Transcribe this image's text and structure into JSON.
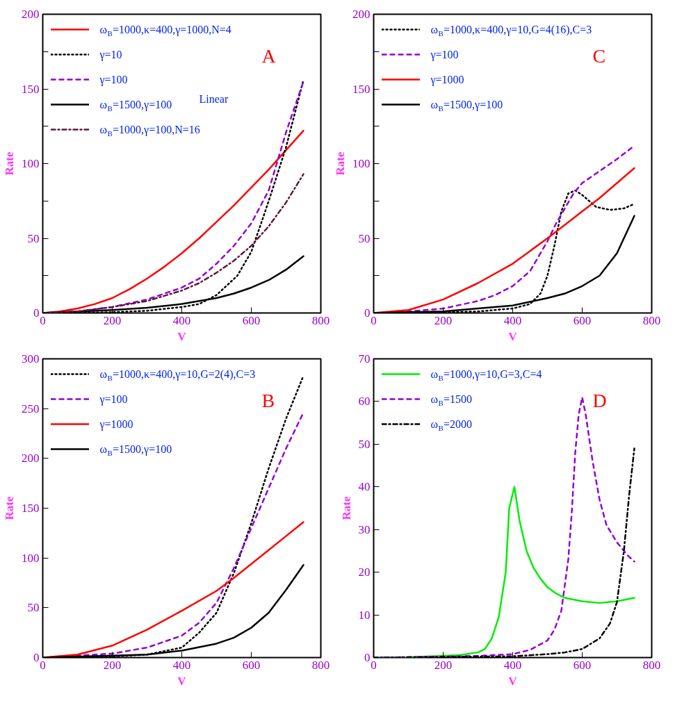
{
  "chart_data": [
    {
      "type": "line",
      "title": "A",
      "xlabel": "V",
      "ylabel": "Rate",
      "annotations": [
        "Linear"
      ],
      "xlim": [
        0,
        800
      ],
      "xticks": [
        0,
        200,
        400,
        600,
        800
      ],
      "ylim": [
        0,
        200
      ],
      "yticks": [
        0,
        {
          "value": 25,
          "label": null
        },
        50,
        {
          "value": 75,
          "label": null
        },
        100,
        {
          "value": 125,
          "label": null
        },
        150,
        {
          "value": 175,
          "label": null
        },
        200
      ],
      "grid": false,
      "legend": "top left",
      "series": [
        {
          "name": "ω$_{B}$=1000,κ=400,γ=1000,N=4",
          "color": "#ff0000",
          "line_style": "solid",
          "x": [
            0,
            50,
            100,
            150,
            200,
            250,
            300,
            350,
            400,
            450,
            500,
            550,
            600,
            650,
            700,
            750
          ],
          "values": [
            0,
            1,
            3,
            6,
            10,
            16,
            23,
            31,
            40,
            50,
            61,
            72,
            84,
            96,
            109,
            122
          ]
        },
        {
          "name": "γ=10",
          "color": "#000000",
          "line_style": "dotted",
          "x": [
            0,
            100,
            200,
            300,
            400,
            450,
            500,
            560,
            600,
            640,
            660,
            700,
            750
          ],
          "values": [
            0,
            0.2,
            0.5,
            1.5,
            4,
            6,
            12,
            25,
            41,
            68,
            82,
            111,
            156
          ]
        },
        {
          "name": "γ=100",
          "color": "#9400d3",
          "line_style": "dashed",
          "x": [
            0,
            100,
            200,
            300,
            400,
            450,
            500,
            550,
            600,
            650,
            700,
            750
          ],
          "values": [
            0,
            1,
            4,
            9,
            17,
            23,
            33,
            45,
            60,
            82,
            121,
            155
          ]
        },
        {
          "name": "ω$_{B}$=1500,γ=100",
          "color": "#000000",
          "line_style": "solid",
          "x": [
            0,
            200,
            300,
            400,
            500,
            550,
            600,
            650,
            700,
            750
          ],
          "values": [
            0,
            2,
            3.5,
            6,
            10,
            13,
            17,
            22,
            29,
            38
          ]
        },
        {
          "name": "ω$_{B}$=1000,γ=100,N=16",
          "color": "#5c1a3c",
          "line_style": "dashdot",
          "x": [
            0,
            100,
            200,
            300,
            400,
            450,
            500,
            550,
            600,
            650,
            700,
            750
          ],
          "values": [
            0,
            1,
            4,
            8,
            15,
            20,
            27,
            35,
            45,
            58,
            74,
            93
          ]
        }
      ]
    },
    {
      "type": "line",
      "title": "C",
      "xlabel": "V",
      "ylabel": "Rate",
      "xlim": [
        0,
        800
      ],
      "xticks": [
        0,
        200,
        400,
        600,
        800
      ],
      "ylim": [
        0,
        200
      ],
      "yticks": [
        0,
        {
          "value": 25,
          "label": null
        },
        50,
        {
          "value": 75,
          "label": null
        },
        100,
        {
          "value": 125,
          "label": null
        },
        150,
        {
          "value": 175,
          "label": null
        },
        200
      ],
      "grid": false,
      "legend": "top left",
      "series": [
        {
          "name": "ω$_{B}$=1000,κ=400,γ=10,G=4(16),C=3",
          "color": "#000000",
          "line_style": "dotted",
          "x": [
            0,
            200,
            300,
            400,
            450,
            480,
            500,
            520,
            540,
            560,
            580,
            600,
            620,
            640,
            680,
            720,
            750
          ],
          "values": [
            0,
            0.5,
            1,
            3,
            6,
            13,
            25,
            45,
            68,
            80,
            82,
            79,
            75,
            71,
            69,
            70,
            73
          ]
        },
        {
          "name": "γ=100",
          "color": "#9400d3",
          "line_style": "dashed",
          "x": [
            0,
            100,
            200,
            300,
            350,
            400,
            450,
            500,
            525,
            550,
            575,
            600,
            650,
            700,
            750
          ],
          "values": [
            0,
            1,
            3,
            8,
            12,
            18,
            28,
            48,
            60,
            70,
            80,
            87,
            95,
            103,
            112
          ]
        },
        {
          "name": "γ=1000",
          "color": "#ff0000",
          "line_style": "solid",
          "x": [
            0,
            100,
            200,
            300,
            400,
            500,
            550,
            600,
            650,
            700,
            750
          ],
          "values": [
            0,
            2,
            9,
            20,
            33,
            50,
            59,
            68,
            77,
            87,
            97
          ]
        },
        {
          "name": "ω$_{B}$=1500,γ=100",
          "color": "#000000",
          "line_style": "solid",
          "x": [
            0,
            200,
            300,
            400,
            500,
            550,
            600,
            650,
            700,
            750
          ],
          "values": [
            0,
            1,
            3,
            5,
            10,
            13,
            18,
            25,
            40,
            65
          ]
        }
      ]
    },
    {
      "type": "line",
      "title": "B",
      "xlabel": "V",
      "ylabel": "Rate",
      "xlim": [
        0,
        800
      ],
      "xticks": [
        0,
        200,
        400,
        600,
        800
      ],
      "ylim": [
        0,
        300
      ],
      "yticks": [
        0,
        50,
        100,
        150,
        200,
        250,
        300
      ],
      "grid": false,
      "legend": "top left",
      "series": [
        {
          "name": "ω$_{B}$=1000,κ=400,γ=10,G=2(4),C=3",
          "color": "#000000",
          "line_style": "dotted",
          "x": [
            0,
            200,
            300,
            400,
            450,
            500,
            550,
            600,
            650,
            700,
            750
          ],
          "values": [
            0,
            1,
            3,
            10,
            25,
            45,
            85,
            135,
            190,
            240,
            283
          ]
        },
        {
          "name": "γ=100",
          "color": "#9400d3",
          "line_style": "dashed",
          "x": [
            0,
            200,
            300,
            400,
            450,
            500,
            550,
            600,
            650,
            700,
            750
          ],
          "values": [
            0,
            4,
            10,
            22,
            35,
            55,
            90,
            130,
            170,
            210,
            246
          ]
        },
        {
          "name": "γ=1000",
          "color": "#ff0000",
          "line_style": "solid",
          "x": [
            0,
            100,
            200,
            300,
            400,
            500,
            550,
            600,
            650,
            700,
            750
          ],
          "values": [
            0,
            3,
            12,
            28,
            47,
            67,
            80,
            94,
            108,
            122,
            136
          ]
        },
        {
          "name": "ω$_{B}$=1500,γ=100",
          "color": "#000000",
          "line_style": "solid",
          "x": [
            0,
            200,
            300,
            400,
            500,
            550,
            600,
            650,
            700,
            750
          ],
          "values": [
            0,
            2,
            3,
            7,
            14,
            20,
            30,
            45,
            68,
            93
          ]
        }
      ]
    },
    {
      "type": "line",
      "title": "D",
      "xlabel": "V",
      "ylabel": "Rate",
      "xlim": [
        0,
        800
      ],
      "xticks": [
        0,
        200,
        400,
        600,
        800
      ],
      "ylim": [
        0,
        70
      ],
      "yticks": [
        0,
        10,
        20,
        30,
        40,
        50,
        60,
        70
      ],
      "grid": false,
      "legend": "top left",
      "series": [
        {
          "name": "ω$_{B}$=1000,γ=10,G=3,C=4",
          "color": "#00ee00",
          "line_style": "solid",
          "x": [
            0,
            100,
            200,
            250,
            300,
            320,
            340,
            360,
            380,
            390,
            405,
            420,
            440,
            460,
            480,
            500,
            525,
            550,
            600,
            650,
            700,
            750
          ],
          "values": [
            0,
            0.1,
            0.4,
            0.6,
            1.2,
            2,
            4.5,
            9.5,
            20,
            35,
            40,
            32,
            25,
            21,
            18.5,
            16.5,
            15,
            14,
            13.2,
            12.8,
            13.2,
            14
          ]
        },
        {
          "name": "ω$_{B}$=1500",
          "color": "#9400d3",
          "line_style": "dashed",
          "x": [
            0,
            200,
            300,
            400,
            450,
            500,
            520,
            540,
            560,
            570,
            580,
            590,
            600,
            610,
            630,
            650,
            670,
            700,
            730,
            750
          ],
          "values": [
            0,
            0.2,
            0.4,
            0.8,
            1.8,
            4,
            6.5,
            11,
            23,
            34,
            48,
            57,
            61,
            57,
            46,
            37,
            31,
            27,
            24,
            22.5
          ]
        },
        {
          "name": "ω$_{B}$=2000",
          "color": "#000000",
          "line_style": "dashdot",
          "x": [
            0,
            400,
            500,
            550,
            600,
            650,
            680,
            700,
            720,
            735,
            750
          ],
          "values": [
            0,
            0.3,
            0.8,
            1.2,
            2,
            4.5,
            8,
            13,
            25,
            38,
            49
          ]
        }
      ]
    }
  ]
}
